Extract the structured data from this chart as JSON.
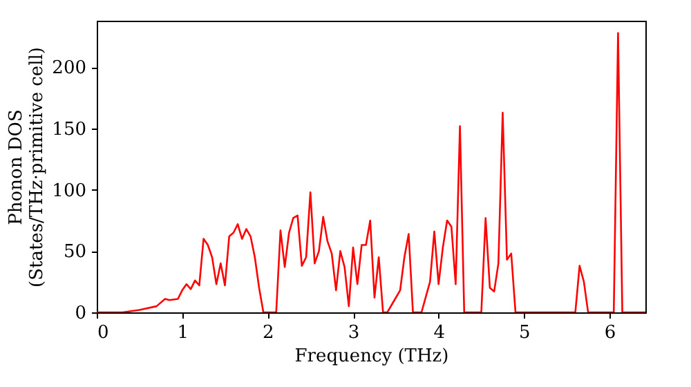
{
  "chart_data": {
    "type": "line",
    "xlabel": "Frequency (THz)",
    "ylabel": "Phonon DOS\n(States/THz·primitive cell)",
    "xlim": [
      0,
      6.42
    ],
    "ylim": [
      0,
      238
    ],
    "xticks": [
      0,
      1,
      2,
      3,
      4,
      5,
      6
    ],
    "yticks": [
      0,
      50,
      100,
      150,
      200
    ],
    "grid": false,
    "x": [
      0,
      0.3,
      0.5,
      0.7,
      0.8,
      0.85,
      0.95,
      1.0,
      1.05,
      1.1,
      1.15,
      1.2,
      1.25,
      1.3,
      1.35,
      1.4,
      1.45,
      1.5,
      1.55,
      1.6,
      1.65,
      1.7,
      1.75,
      1.8,
      1.85,
      1.9,
      1.95,
      2.05,
      2.1,
      2.15,
      2.2,
      2.25,
      2.3,
      2.35,
      2.4,
      2.45,
      2.5,
      2.55,
      2.6,
      2.65,
      2.7,
      2.75,
      2.8,
      2.85,
      2.9,
      2.95,
      3.0,
      3.05,
      3.1,
      3.15,
      3.2,
      3.25,
      3.3,
      3.35,
      3.4,
      3.5,
      3.55,
      3.6,
      3.65,
      3.7,
      3.8,
      3.9,
      3.95,
      4.0,
      4.05,
      4.1,
      4.15,
      4.2,
      4.25,
      4.3,
      4.5,
      4.55,
      4.6,
      4.65,
      4.7,
      4.75,
      4.8,
      4.85,
      4.9,
      5.6,
      5.65,
      5.7,
      5.75,
      6.05,
      6.1,
      6.15,
      6.42
    ],
    "series": [
      {
        "color": "#ff0000",
        "values": [
          0,
          0,
          2,
          5,
          11,
          10,
          11,
          18,
          23,
          19,
          26,
          22,
          60,
          55,
          45,
          23,
          40,
          22,
          62,
          65,
          72,
          60,
          68,
          62,
          45,
          20,
          0,
          0,
          0,
          67,
          37,
          65,
          77,
          79,
          38,
          45,
          98,
          40,
          50,
          78,
          58,
          48,
          18,
          50,
          37,
          5,
          53,
          23,
          55,
          55,
          75,
          12,
          45,
          0,
          0,
          12,
          18,
          45,
          64,
          0,
          0,
          25,
          66,
          23,
          53,
          75,
          70,
          23,
          152,
          0,
          0,
          77,
          20,
          17,
          40,
          163,
          43,
          48,
          0,
          0,
          38,
          25,
          0,
          0,
          228,
          0,
          0
        ]
      }
    ]
  }
}
